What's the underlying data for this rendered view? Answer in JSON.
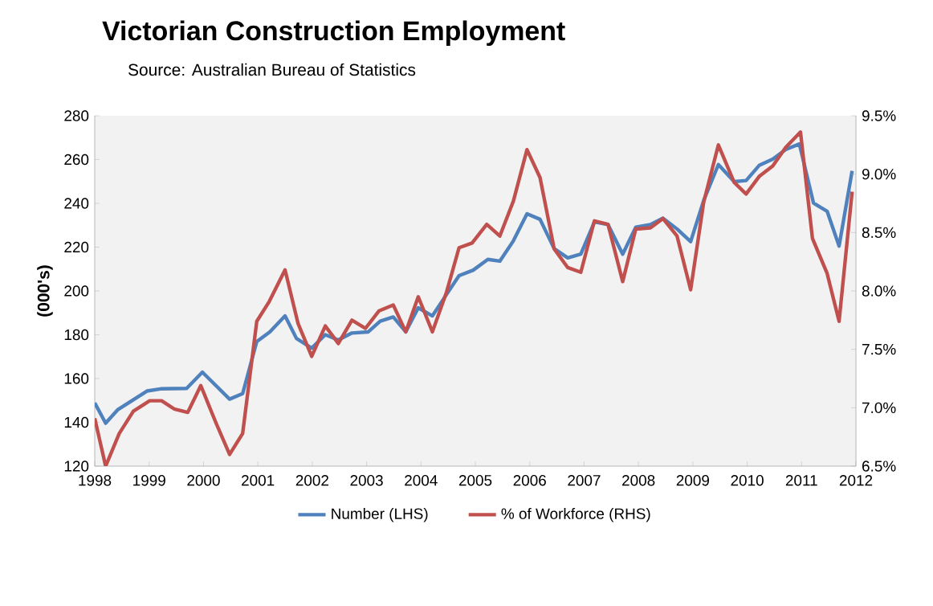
{
  "chart_data": {
    "type": "line",
    "title": "Victorian  Construction  Employment",
    "subtitle": "Source: Australian Bureau of Statistics",
    "ylabel": "(000's)",
    "xlim": [
      1998,
      2012
    ],
    "xticks": [
      1998,
      1999,
      2000,
      2001,
      2002,
      2003,
      2004,
      2005,
      2006,
      2007,
      2008,
      2009,
      2010,
      2011,
      2012
    ],
    "ylim": [
      120,
      280
    ],
    "yticks": [
      120,
      140,
      160,
      180,
      200,
      220,
      240,
      260,
      280
    ],
    "y2lim": [
      6.5,
      9.5
    ],
    "y2ticks": [
      {
        "value": 6.5,
        "label": "6.5%"
      },
      {
        "value": 7.0,
        "label": "7.0%"
      },
      {
        "value": 7.5,
        "label": "7.5%"
      },
      {
        "value": 8.0,
        "label": "8.0%"
      },
      {
        "value": 8.5,
        "label": "8.5%"
      },
      {
        "value": 9.0,
        "label": "9.0%"
      },
      {
        "value": 9.5,
        "label": "9.5%"
      }
    ],
    "legend": "bottom",
    "marker": "none",
    "line_style": "solid",
    "series": [
      {
        "name": "Number (LHS)",
        "color": "#4f81bd",
        "x": [
          1998.0,
          1998.2,
          1998.42,
          1998.96,
          1999.21,
          1999.69,
          1999.98,
          2000.48,
          2000.72,
          2000.98,
          2001.22,
          2001.5,
          2001.71,
          2001.99,
          2002.24,
          2002.48,
          2002.73,
          2003.03,
          2003.25,
          2003.49,
          2003.72,
          2003.95,
          2004.21,
          2004.47,
          2004.7,
          2004.96,
          2005.23,
          2005.45,
          2005.7,
          2005.95,
          2006.19,
          2006.45,
          2006.7,
          2006.94,
          2007.19,
          2007.44,
          2007.71,
          2007.95,
          2008.22,
          2008.45,
          2008.71,
          2008.96,
          2009.2,
          2009.47,
          2009.76,
          2009.98,
          2010.22,
          2010.47,
          2010.71,
          2010.96,
          2011.22,
          2011.47,
          2011.69,
          2011.93
        ],
        "values": [
          148.9,
          139.6,
          145.7,
          154.3,
          155.3,
          155.5,
          162.9,
          150.6,
          153.1,
          176.9,
          181.3,
          188.6,
          178.3,
          173.9,
          180,
          177.6,
          180.8,
          181.3,
          186.2,
          188.1,
          181.3,
          192.3,
          188.6,
          198.4,
          207,
          209.5,
          214.4,
          213.6,
          222.9,
          235.2,
          232.7,
          219.3,
          215.1,
          216.8,
          231.5,
          230.3,
          216.8,
          229.1,
          230.3,
          233.2,
          228.3,
          222.5,
          241.3,
          257.7,
          249.9,
          250.4,
          257.3,
          260.2,
          264.6,
          267.1,
          240.1,
          236.4,
          220.5,
          254.8
        ]
      },
      {
        "name": "% of Workforce (RHS)",
        "color": "#c0504d",
        "axis": "y2",
        "x": [
          1998.0,
          1998.2,
          1998.45,
          1998.71,
          1999.01,
          1999.23,
          1999.46,
          1999.71,
          1999.95,
          2000.23,
          2000.48,
          2000.72,
          2000.98,
          2001.21,
          2001.5,
          2001.74,
          2001.99,
          2002.24,
          2002.48,
          2002.73,
          2002.98,
          2003.23,
          2003.49,
          2003.72,
          2003.95,
          2004.21,
          2004.47,
          2004.7,
          2004.94,
          2005.21,
          2005.45,
          2005.7,
          2005.95,
          2006.19,
          2006.45,
          2006.7,
          2006.94,
          2007.19,
          2007.44,
          2007.71,
          2007.95,
          2008.22,
          2008.45,
          2008.71,
          2008.96,
          2009.2,
          2009.47,
          2009.76,
          2009.98,
          2010.22,
          2010.47,
          2010.71,
          2010.98,
          2011.2,
          2011.47,
          2011.69,
          2011.93
        ],
        "values": [
          6.91,
          6.5,
          6.78,
          6.97,
          7.06,
          7.06,
          6.99,
          6.96,
          7.19,
          6.87,
          6.6,
          6.78,
          7.74,
          7.91,
          8.18,
          7.72,
          7.44,
          7.7,
          7.55,
          7.75,
          7.68,
          7.83,
          7.88,
          7.65,
          7.95,
          7.65,
          7.99,
          8.37,
          8.41,
          8.57,
          8.47,
          8.77,
          9.21,
          8.97,
          8.36,
          8.2,
          8.16,
          8.6,
          8.57,
          8.08,
          8.53,
          8.54,
          8.62,
          8.47,
          8.01,
          8.76,
          9.25,
          8.93,
          8.83,
          8.98,
          9.07,
          9.23,
          9.36,
          8.45,
          8.15,
          7.74,
          8.85
        ]
      }
    ]
  }
}
